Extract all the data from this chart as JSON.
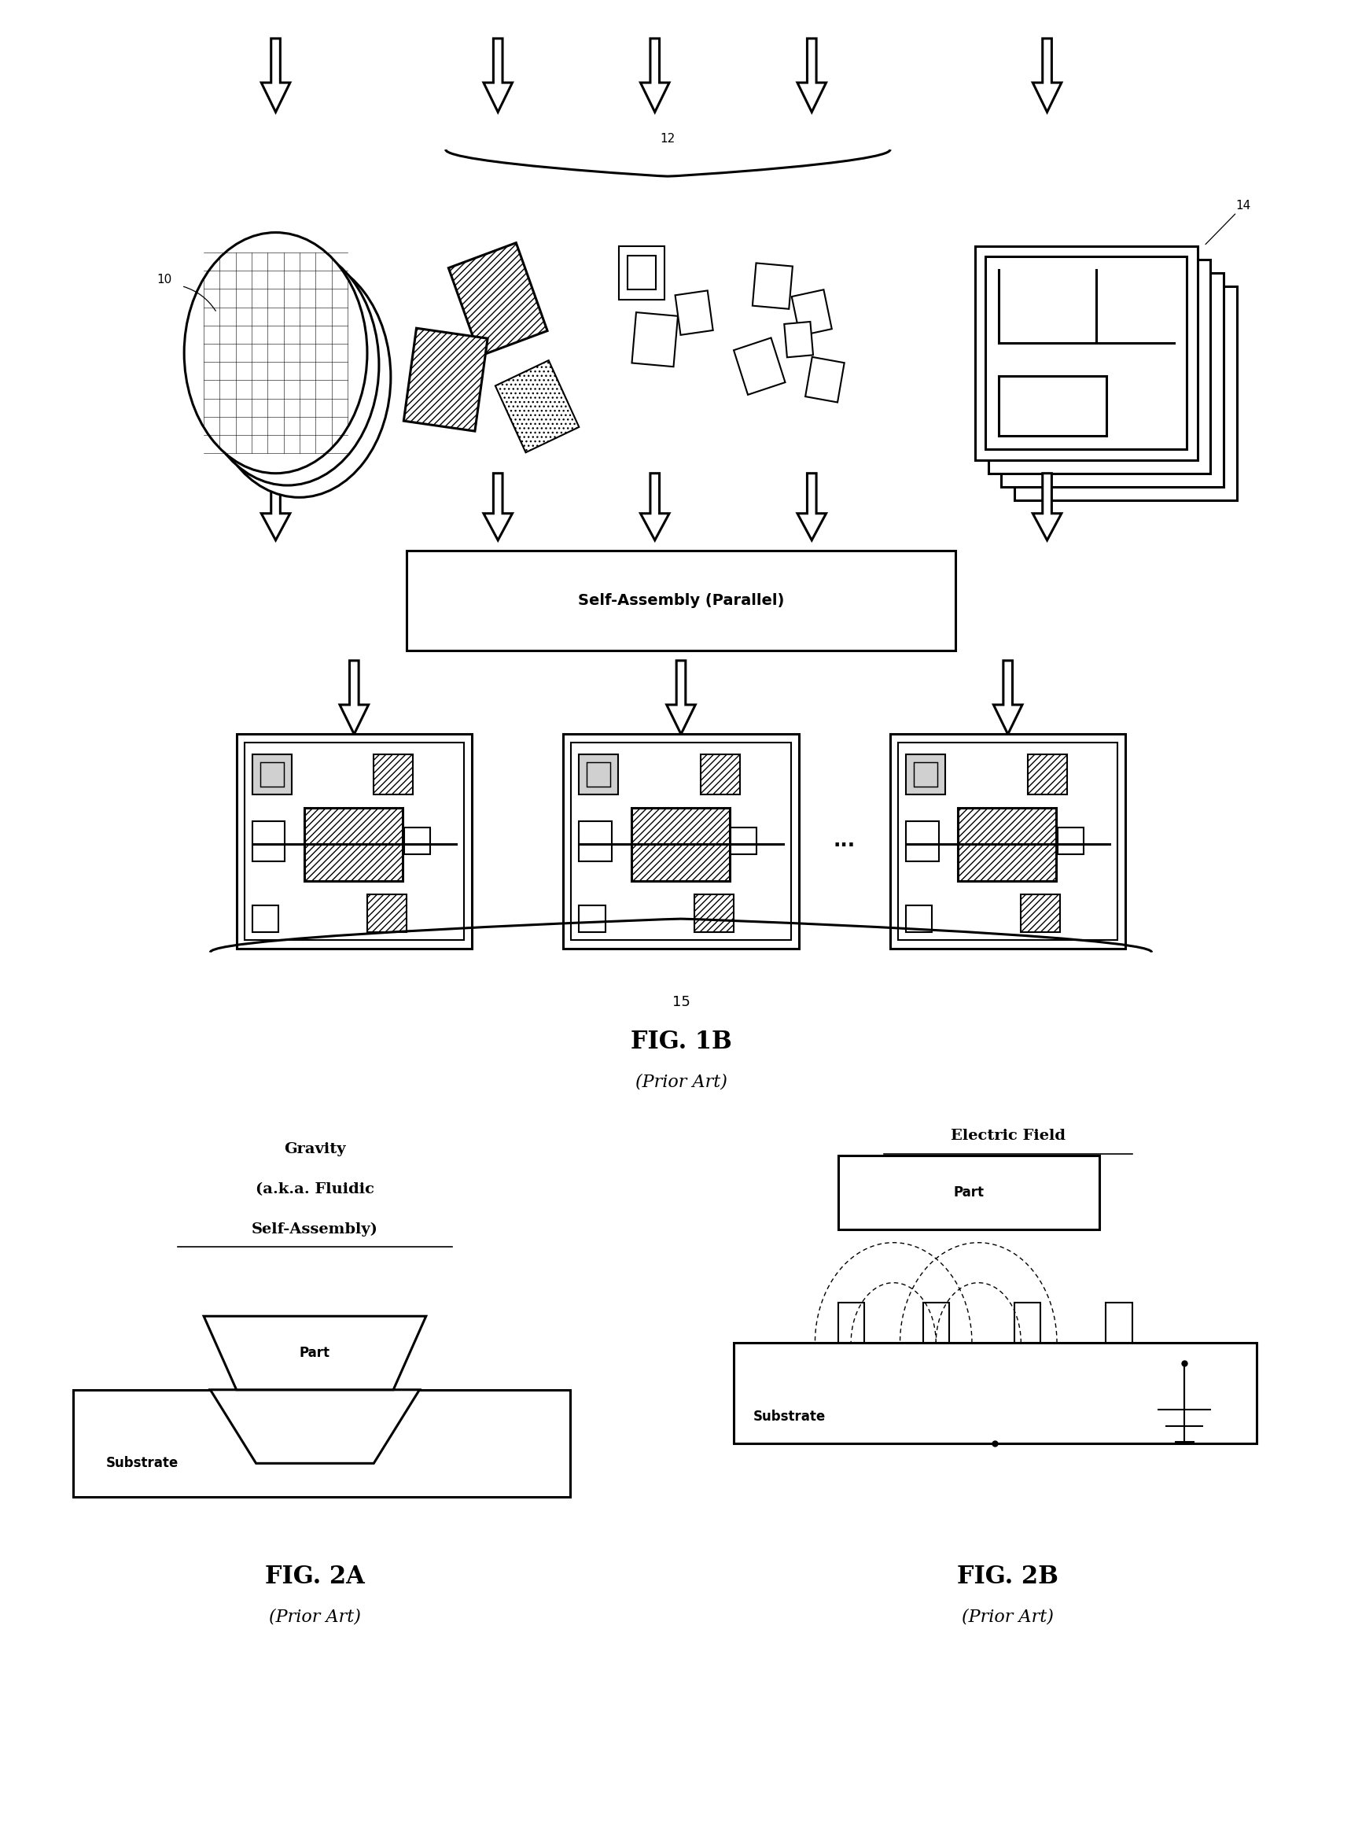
{
  "fig_width": 17.32,
  "fig_height": 23.43,
  "bg_color": "#ffffff",
  "fig1b_title": "FIG. 1B",
  "fig1b_subtitle": "(Prior Art)",
  "fig2a_title": "FIG. 2A",
  "fig2a_subtitle": "(Prior Art)",
  "fig2b_title": "FIG. 2B",
  "fig2b_subtitle": "(Prior Art)",
  "label_10": "10",
  "label_12": "12",
  "label_14": "14",
  "label_15": "15",
  "self_assembly_text": "Self-Assembly (Parallel)",
  "gravity_line1": "Gravity",
  "gravity_line2": "(a.k.a. Fluidic",
  "gravity_line3": "Self-Assembly)",
  "electric_field_text": "Electric Field",
  "part_text": "Part",
  "substrate_text_2a": "Substrate",
  "substrate_text_2b": "Substrate",
  "dots_text": "...",
  "lw_thin": 1.0,
  "lw_med": 1.5,
  "lw_thick": 2.2
}
